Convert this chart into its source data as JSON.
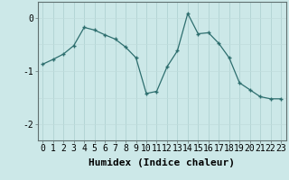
{
  "x": [
    0,
    1,
    2,
    3,
    4,
    5,
    6,
    7,
    8,
    9,
    10,
    11,
    12,
    13,
    14,
    15,
    16,
    17,
    18,
    19,
    20,
    21,
    22,
    23
  ],
  "y": [
    -0.87,
    -0.78,
    -0.68,
    -0.52,
    -0.18,
    -0.23,
    -0.32,
    -0.4,
    -0.55,
    -0.75,
    -1.42,
    -1.38,
    -0.92,
    -0.62,
    0.08,
    -0.3,
    -0.28,
    -0.48,
    -0.75,
    -1.22,
    -1.35,
    -1.48,
    -1.52,
    -1.52
  ],
  "line_color": "#2d6e6e",
  "bg_color": "#cce8e8",
  "grid_color_v": "#aacece",
  "grid_color_h": "#c0dcdc",
  "xlabel": "Humidex (Indice chaleur)",
  "ylim": [
    -2.3,
    0.3
  ],
  "yticks": [
    0,
    -1,
    -2
  ],
  "xticks": [
    0,
    1,
    2,
    3,
    4,
    5,
    6,
    7,
    8,
    9,
    10,
    11,
    12,
    13,
    14,
    15,
    16,
    17,
    18,
    19,
    20,
    21,
    22,
    23
  ],
  "xlabel_fontsize": 8,
  "tick_fontsize": 7
}
